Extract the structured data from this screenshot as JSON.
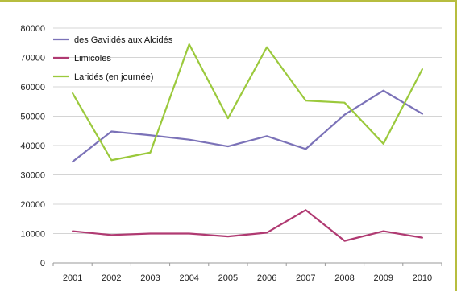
{
  "chart_data": {
    "type": "line",
    "title": "",
    "xlabel": "",
    "ylabel": "",
    "x": [
      "2001",
      "2002",
      "2003",
      "2004",
      "2005",
      "2006",
      "2007",
      "2008",
      "2009",
      "2010"
    ],
    "ylim": [
      0,
      80000
    ],
    "yticks": [
      "0",
      "10000",
      "20000",
      "30000",
      "40000",
      "50000",
      "60000",
      "70000",
      "80000"
    ],
    "grid": true,
    "legend_position": "top-left",
    "series": [
      {
        "name": "des Gaviidés aux Alcidés",
        "color": "#7b72b8",
        "values": [
          34500,
          44800,
          43500,
          42000,
          39700,
          43200,
          38800,
          50500,
          58700,
          50800
        ]
      },
      {
        "name": "Limicoles",
        "color": "#b03a72",
        "values": [
          10800,
          9500,
          10000,
          10000,
          9000,
          10300,
          18000,
          7500,
          10800,
          8600
        ]
      },
      {
        "name": "Laridés (en journée)",
        "color": "#9bc93c",
        "values": [
          57800,
          35000,
          37600,
          74500,
          49300,
          73500,
          55300,
          54600,
          40600,
          66000
        ]
      }
    ]
  }
}
